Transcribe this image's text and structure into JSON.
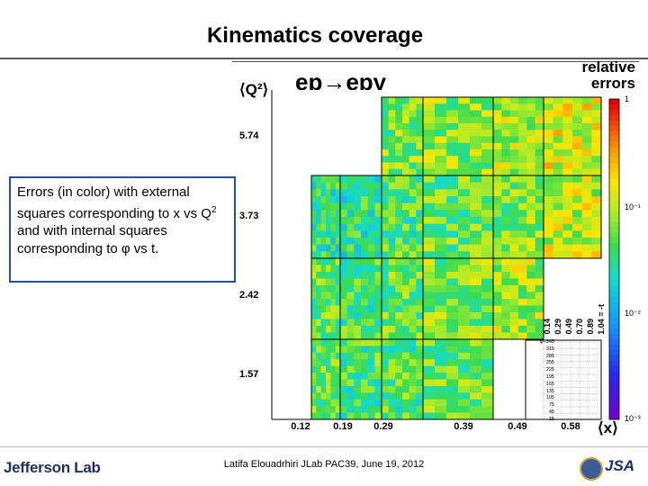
{
  "slide": {
    "title": "Kinematics coverage",
    "callout_pre": "Errors (in color) with external squares corresponding to x vs Q",
    "callout_sup": "2",
    "callout_post": " and with internal squares corresponding to φ vs t.",
    "footer": "Latifa Elouadrhiri  JLab PAC39, June 19, 2012",
    "logo_left": "Jefferson Lab",
    "logo_right": "JSA"
  },
  "chart_data": {
    "type": "heatmap",
    "title": "ep→epγ",
    "ylabel": "⟨Q²⟩",
    "xlabel": "⟨x⟩",
    "x_ticks": [
      "0.12",
      "0.19",
      "0.29",
      "0.39",
      "0.49",
      "0.58"
    ],
    "y_ticks": [
      "5.74",
      "3.73",
      "2.42",
      "1.57"
    ],
    "colorbar_label": "relative errors",
    "colorbar_ticks": [
      "1",
      "10⁻¹",
      "10⁻²",
      "10⁻³"
    ],
    "colorbar_range": [
      0.001,
      1
    ],
    "t_bins_label": [
      "0.14",
      "0.29",
      "0.49",
      "0.70",
      "0.89",
      "1.04 = -t"
    ],
    "phi_bins_label": [
      "φ=345",
      "315",
      "285",
      "255",
      "225",
      "195",
      "165",
      "135",
      "105",
      "75",
      "45",
      "15"
    ],
    "bins": [
      {
        "x": "0.12",
        "q2": "1.57",
        "mean_error": 0.05
      },
      {
        "x": "0.19",
        "q2": "1.57",
        "mean_error": 0.04
      },
      {
        "x": "0.29",
        "q2": "1.57",
        "mean_error": 0.04
      },
      {
        "x": "0.39",
        "q2": "1.57",
        "mean_error": 0.05
      },
      {
        "x": "0.12",
        "q2": "2.42",
        "mean_error": 0.05
      },
      {
        "x": "0.19",
        "q2": "2.42",
        "mean_error": 0.04
      },
      {
        "x": "0.29",
        "q2": "2.42",
        "mean_error": 0.05
      },
      {
        "x": "0.39",
        "q2": "2.42",
        "mean_error": 0.06
      },
      {
        "x": "0.49",
        "q2": "2.42",
        "mean_error": 0.08
      },
      {
        "x": "0.12",
        "q2": "3.73",
        "mean_error": 0.03
      },
      {
        "x": "0.19",
        "q2": "3.73",
        "mean_error": 0.03
      },
      {
        "x": "0.29",
        "q2": "3.73",
        "mean_error": 0.04
      },
      {
        "x": "0.39",
        "q2": "3.73",
        "mean_error": 0.05
      },
      {
        "x": "0.49",
        "q2": "3.73",
        "mean_error": 0.06
      },
      {
        "x": "0.58",
        "q2": "3.73",
        "mean_error": 0.1
      },
      {
        "x": "0.29",
        "q2": "5.74",
        "mean_error": 0.06
      },
      {
        "x": "0.39",
        "q2": "5.74",
        "mean_error": 0.07
      },
      {
        "x": "0.49",
        "q2": "5.74",
        "mean_error": 0.08
      },
      {
        "x": "0.58",
        "q2": "5.74",
        "mean_error": 0.12
      }
    ]
  }
}
